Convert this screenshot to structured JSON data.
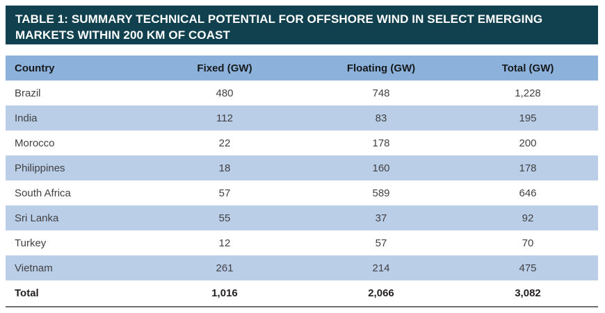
{
  "table": {
    "title_lines": [
      "TABLE 1: SUMMARY TECHNICAL POTENTIAL FOR OFFSHORE WIND IN SELECT EMERGING",
      "MARKETS WITHIN 200 KM OF COAST"
    ],
    "columns": [
      "Country",
      "Fixed (GW)",
      "Floating (GW)",
      "Total (GW)"
    ],
    "rows": [
      {
        "country": "Brazil",
        "fixed": "480",
        "floating": "748",
        "total": "1,228"
      },
      {
        "country": "India",
        "fixed": "112",
        "floating": "83",
        "total": "195"
      },
      {
        "country": "Morocco",
        "fixed": "22",
        "floating": "178",
        "total": "200"
      },
      {
        "country": "Philippines",
        "fixed": "18",
        "floating": "160",
        "total": "178"
      },
      {
        "country": "South Africa",
        "fixed": "57",
        "floating": "589",
        "total": "646"
      },
      {
        "country": "Sri Lanka",
        "fixed": "55",
        "floating": "37",
        "total": "92"
      },
      {
        "country": "Turkey",
        "fixed": "12",
        "floating": "57",
        "total": "70"
      },
      {
        "country": "Vietnam",
        "fixed": "261",
        "floating": "214",
        "total": "475"
      }
    ],
    "total_row": {
      "country": "Total",
      "fixed": "1,016",
      "floating": "2,066",
      "total": "3,082"
    }
  },
  "colors": {
    "banner_bg": "#11414e",
    "banner_fg": "#ffffff",
    "header_bg": "#8cb1da",
    "row_alt_bg": "#bacee8",
    "row_bg": "#ffffff",
    "body_fg": "#414042",
    "total_border": "#6d6e71"
  }
}
